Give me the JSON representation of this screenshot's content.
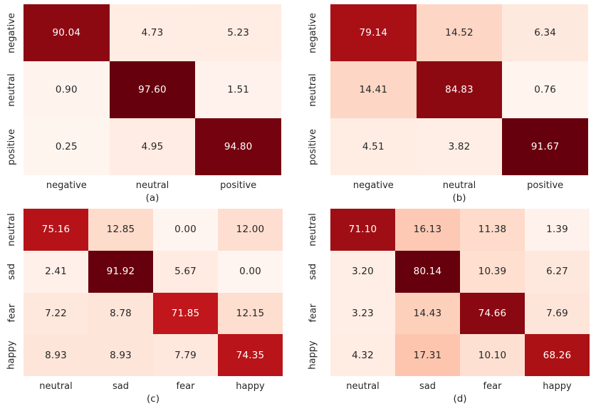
{
  "figure": {
    "background": "#ffffff",
    "label_color": "#262626",
    "annotation_dark_color": "#262626",
    "annotation_light_color": "#ffffff",
    "colormap": {
      "name": "Reds",
      "stops": [
        "#fff5f0",
        "#fee0d2",
        "#fcbba1",
        "#fc9272",
        "#fb6a4a",
        "#ef3b2c",
        "#cb181d",
        "#a50f15",
        "#67000d"
      ]
    }
  },
  "chart_data": [
    {
      "type": "heatmap",
      "caption": "(a)",
      "x_categories": [
        "negative",
        "neutral",
        "positive"
      ],
      "y_categories": [
        "negative",
        "neutral",
        "positive"
      ],
      "values": [
        [
          90.04,
          4.73,
          5.23
        ],
        [
          0.9,
          97.6,
          1.51
        ],
        [
          0.25,
          4.95,
          94.8
        ]
      ],
      "value_decimals": 2,
      "vmin": 0,
      "vmax": "panel-max",
      "grid": false,
      "legend": "none"
    },
    {
      "type": "heatmap",
      "caption": "(b)",
      "x_categories": [
        "negative",
        "neutral",
        "positive"
      ],
      "y_categories": [
        "negative",
        "neutral",
        "positive"
      ],
      "values": [
        [
          79.14,
          14.52,
          6.34
        ],
        [
          14.41,
          84.83,
          0.76
        ],
        [
          4.51,
          3.82,
          91.67
        ]
      ],
      "value_decimals": 2,
      "vmin": 0,
      "vmax": "panel-max",
      "grid": false,
      "legend": "none"
    },
    {
      "type": "heatmap",
      "caption": "(c)",
      "x_categories": [
        "neutral",
        "sad",
        "fear",
        "happy"
      ],
      "y_categories": [
        "neutral",
        "sad",
        "fear",
        "happy"
      ],
      "values": [
        [
          75.16,
          12.85,
          0.0,
          12.0
        ],
        [
          2.41,
          91.92,
          5.67,
          0.0
        ],
        [
          7.22,
          8.78,
          71.85,
          12.15
        ],
        [
          8.93,
          8.93,
          7.79,
          74.35
        ]
      ],
      "value_decimals": 2,
      "vmin": 0,
      "vmax": "panel-max",
      "grid": false,
      "legend": "none"
    },
    {
      "type": "heatmap",
      "caption": "(d)",
      "x_categories": [
        "neutral",
        "sad",
        "fear",
        "happy"
      ],
      "y_categories": [
        "neutral",
        "sad",
        "fear",
        "happy"
      ],
      "values": [
        [
          71.1,
          16.13,
          11.38,
          1.39
        ],
        [
          3.2,
          80.14,
          10.39,
          6.27
        ],
        [
          3.23,
          14.43,
          74.66,
          7.69
        ],
        [
          4.32,
          17.31,
          10.1,
          68.26
        ]
      ],
      "value_decimals": 2,
      "vmin": 0,
      "vmax": "panel-max",
      "grid": false,
      "legend": "none"
    }
  ]
}
